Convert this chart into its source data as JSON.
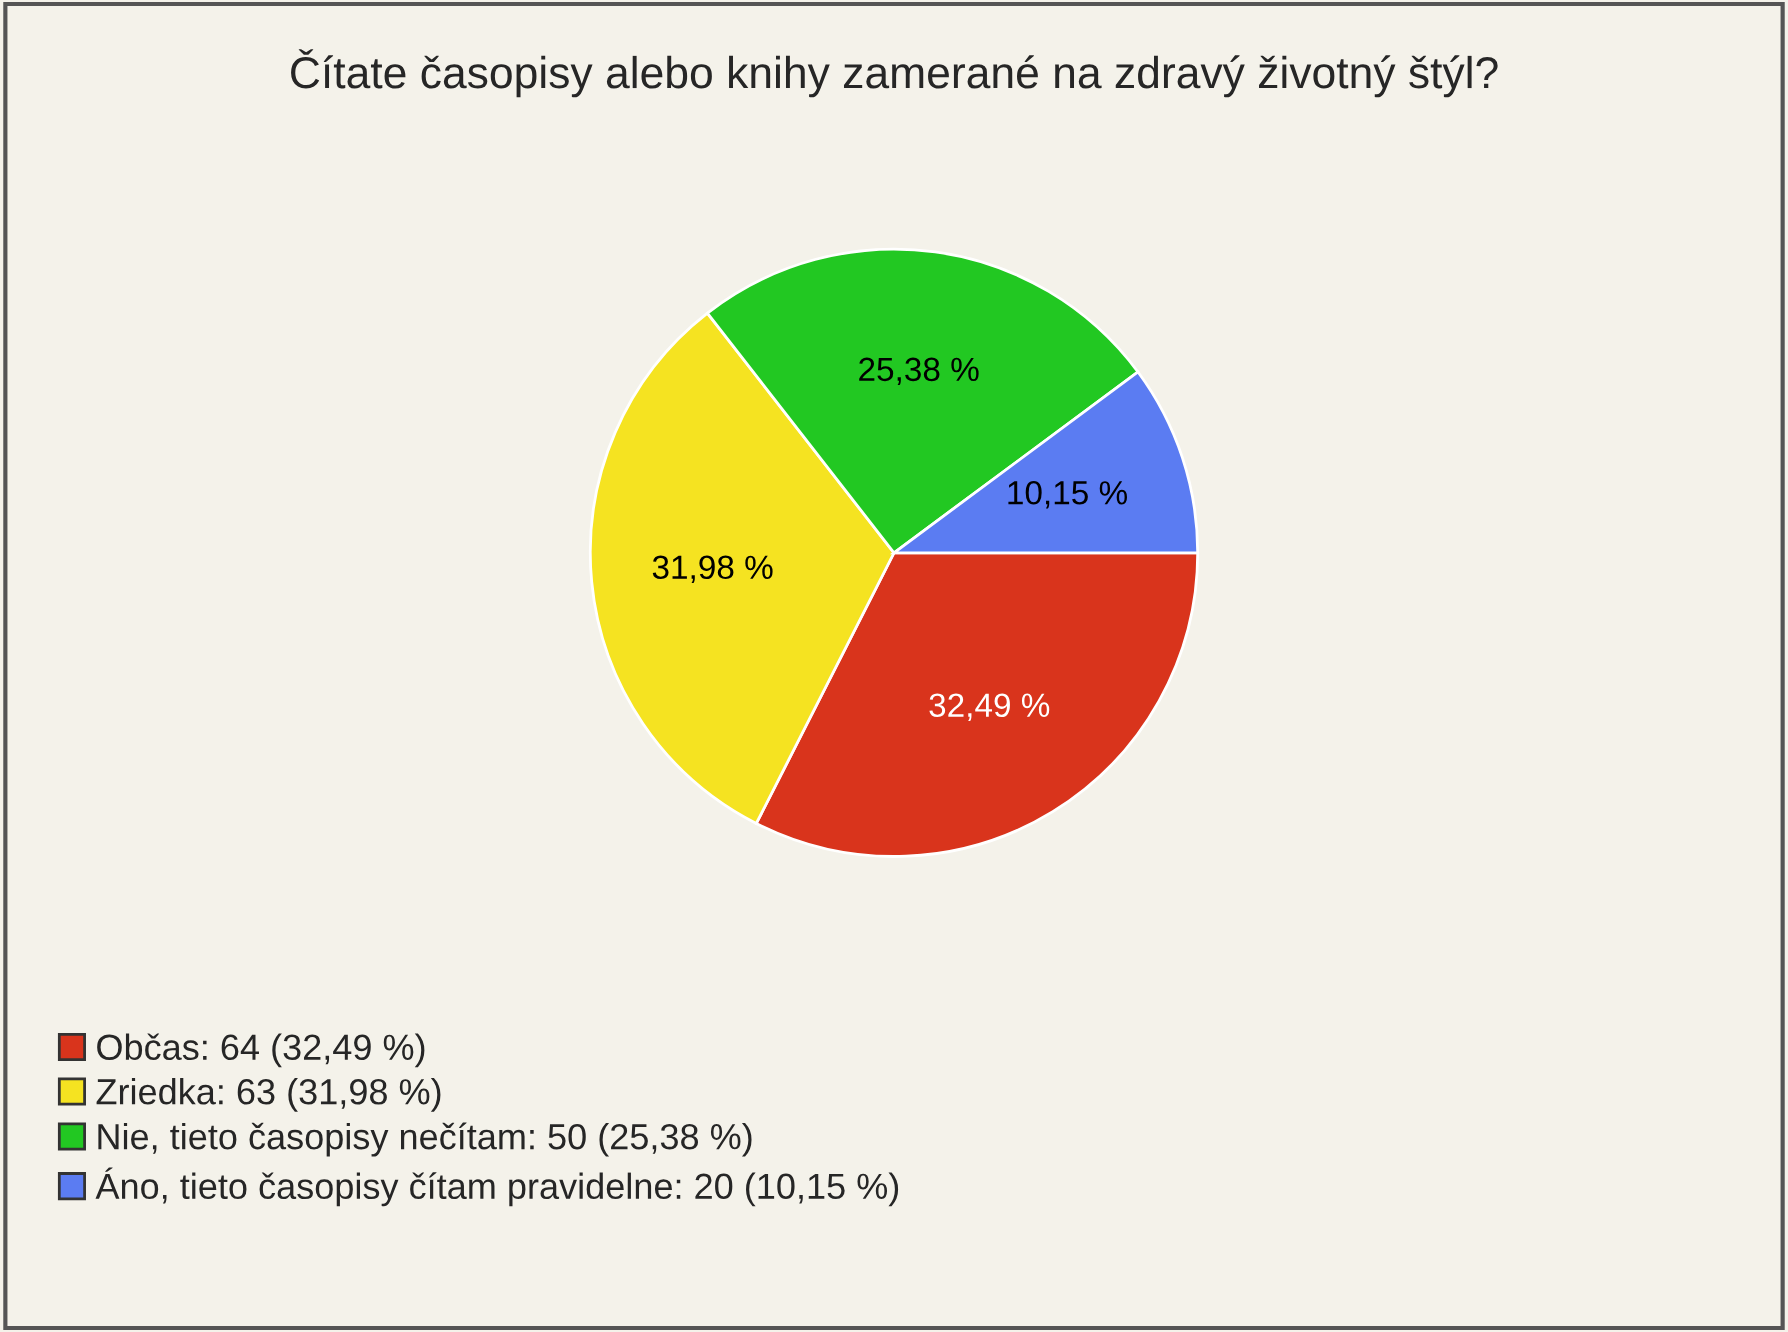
{
  "chart_data": {
    "type": "pie",
    "title": "Čítate časopisy alebo knihy zamerané na zdravý životný štýl?",
    "categories": [
      "Občas: 64 (32,49 %)",
      "Zriedka: 63 (31,98 %)",
      "Nie, tieto časopisy nečítam: 50 (25,38 %)",
      "Áno, tieto časopisy čítam pravidelne: 20 (10,15 %)"
    ],
    "values": [
      32.49,
      31.98,
      25.38,
      10.15
    ],
    "value_labels": [
      "32,49 %",
      "31,98 %",
      "25,38 %",
      "10,15 %"
    ],
    "colors": [
      "#d9341c",
      "#f5e321",
      "#22c822",
      "#5b7cf2"
    ],
    "legend": "bottom left"
  }
}
